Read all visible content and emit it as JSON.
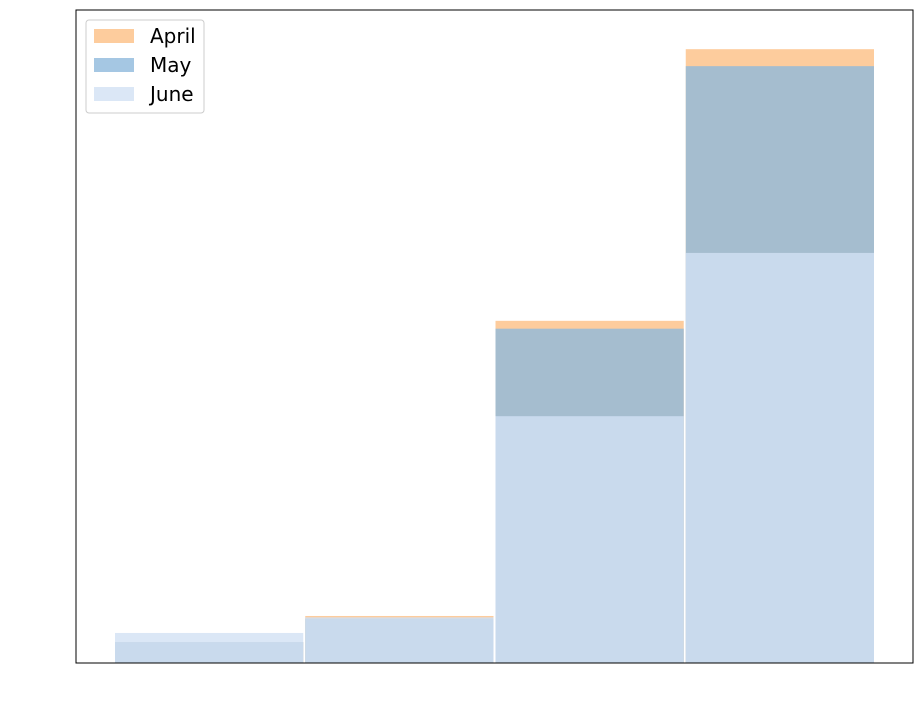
{
  "chart_data": {
    "type": "bar",
    "title": "",
    "xlabel": "",
    "ylabel": "",
    "bins": 4,
    "ylim": [
      0,
      100
    ],
    "grid": false,
    "legend": "top-left",
    "overlap": true,
    "series": [
      {
        "name": "April",
        "color": "#fdbf85",
        "values": [
          3.2,
          7.2,
          52.4,
          94.0
        ]
      },
      {
        "name": "May",
        "color": "#8fb9dc",
        "values": [
          3.2,
          6.8,
          51.2,
          91.4
        ]
      },
      {
        "name": "June",
        "color": "#d2e1f4",
        "values": [
          4.6,
          7.0,
          37.8,
          62.8
        ]
      }
    ]
  }
}
